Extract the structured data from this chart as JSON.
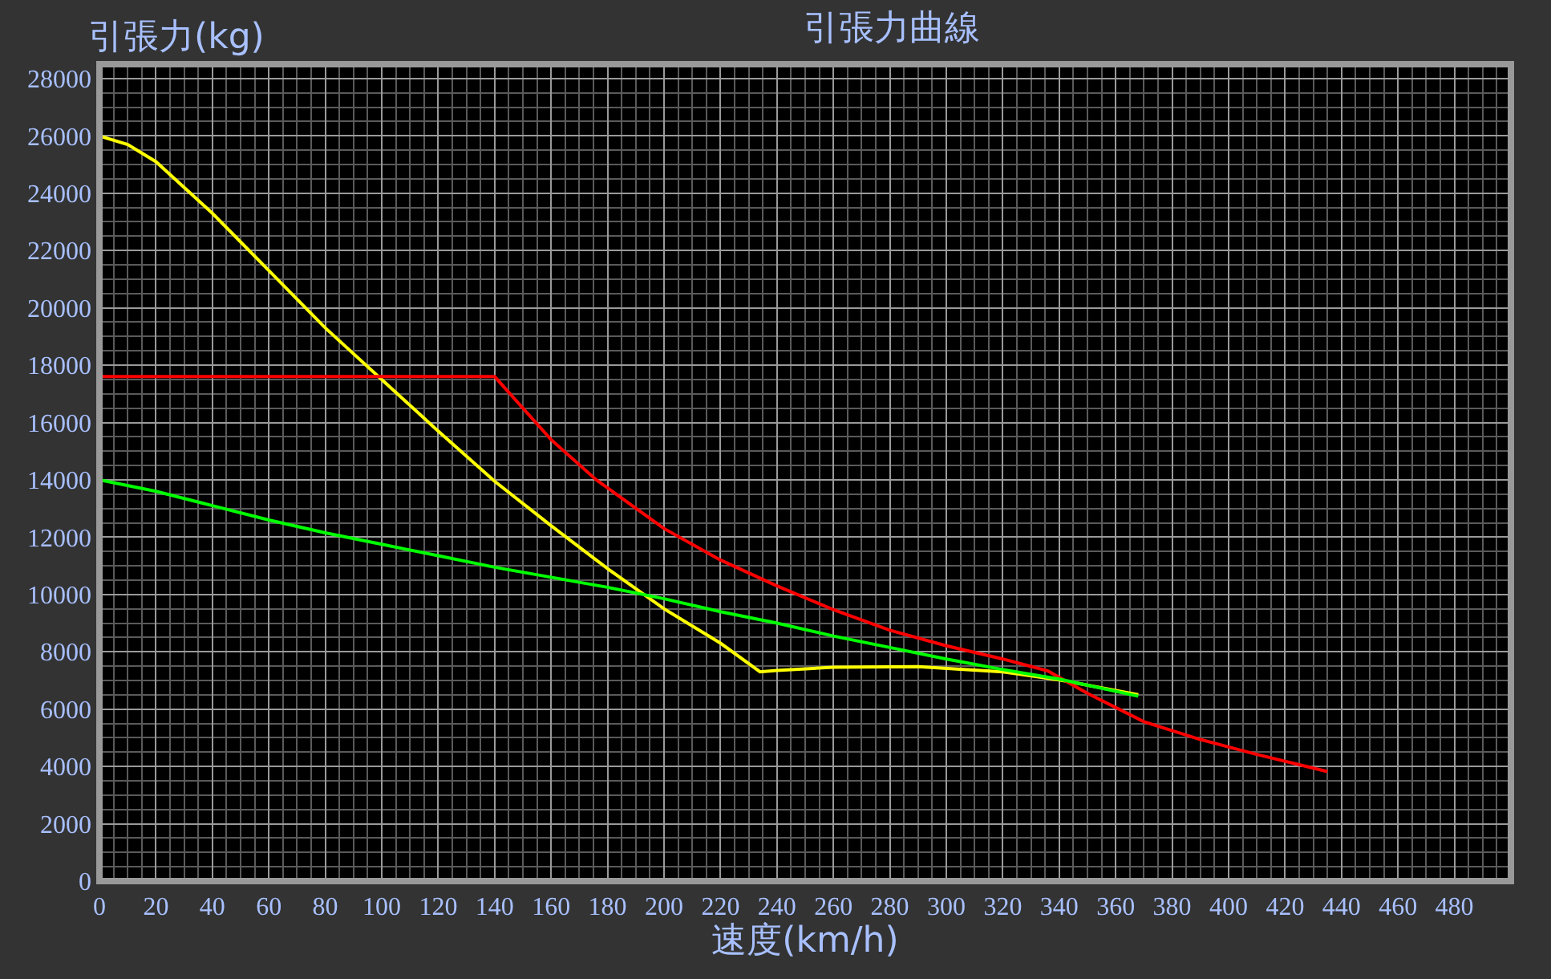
{
  "chart_data": {
    "type": "line",
    "title": "引張力曲線",
    "xlabel": "速度(km/h)",
    "ylabel": "引張力(kg)",
    "xlim": [
      0,
      500
    ],
    "xticks": [
      0,
      20,
      40,
      60,
      80,
      100,
      120,
      140,
      160,
      180,
      200,
      220,
      240,
      260,
      280,
      300,
      320,
      340,
      360,
      380,
      400,
      420,
      440,
      460,
      480
    ],
    "ylim": [
      0,
      28500
    ],
    "yticks": [
      0,
      2000,
      4000,
      6000,
      8000,
      10000,
      12000,
      14000,
      16000,
      18000,
      20000,
      22000,
      24000,
      26000,
      28000
    ],
    "grid": true,
    "marker": "none",
    "line_style": "solid",
    "series": [
      {
        "color": "#ffff00",
        "x": [
          0,
          10,
          20,
          40,
          60,
          80,
          100,
          120,
          140,
          160,
          180,
          200,
          220,
          234,
          240,
          260,
          290,
          320,
          340,
          368
        ],
        "values": [
          26000,
          25700,
          25100,
          23300,
          21300,
          19300,
          17500,
          15700,
          13950,
          12400,
          10900,
          9500,
          8300,
          7300,
          7350,
          7460,
          7480,
          7300,
          7020,
          6500
        ]
      },
      {
        "color": "#ff0000",
        "x": [
          0,
          140,
          160,
          176,
          200,
          220,
          240,
          260,
          280,
          300,
          320,
          336,
          350,
          370,
          390,
          410,
          435
        ],
        "values": [
          17600,
          17600,
          15400,
          14000,
          12300,
          11200,
          10300,
          9470,
          8750,
          8210,
          7750,
          7330,
          6550,
          5560,
          4940,
          4420,
          3820
        ]
      },
      {
        "color": "#00ff00",
        "x": [
          0,
          20,
          40,
          60,
          80,
          100,
          120,
          140,
          160,
          180,
          200,
          220,
          240,
          260,
          280,
          300,
          320,
          340,
          368
        ],
        "values": [
          14000,
          13600,
          13100,
          12600,
          12150,
          11750,
          11350,
          10950,
          10600,
          10250,
          9850,
          9400,
          9000,
          8550,
          8150,
          7750,
          7380,
          7050,
          6450
        ]
      }
    ]
  }
}
